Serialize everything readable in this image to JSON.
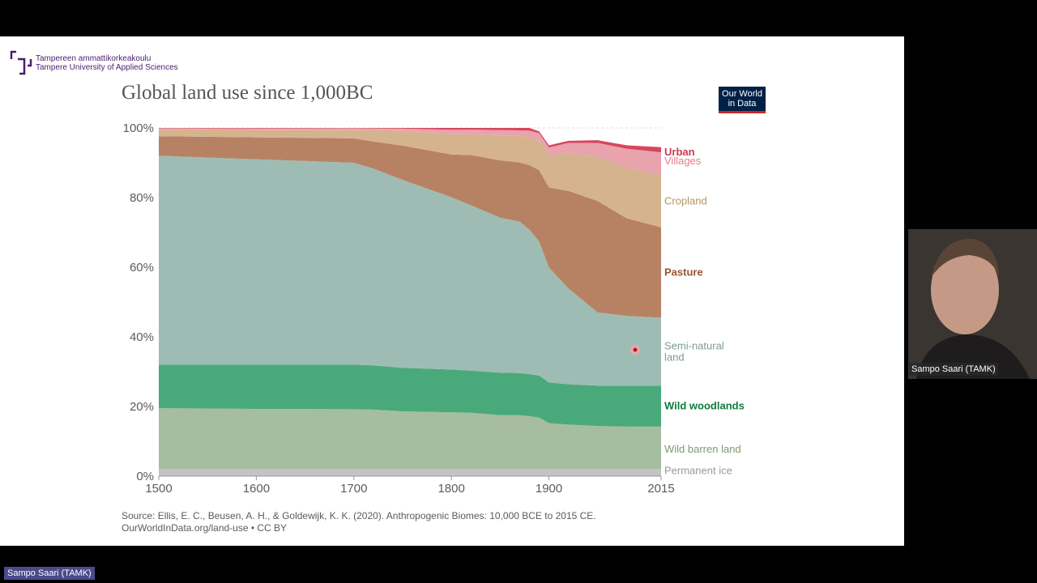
{
  "logo": {
    "line1": "Tampereen ammattikorkeakoulu",
    "line2": "Tampere University of Applied Sciences",
    "brand_color": "#4e1c6e"
  },
  "owid_badge": {
    "line1": "Our World",
    "line2": "in Data",
    "bg_color": "#002147",
    "accent_color": "#ce261e"
  },
  "source": {
    "line1": "Source: Ellis, E. C., Beusen, A. H., & Goldewijk, K. K. (2020). Anthropogenic Biomes: 10,000 BCE to 2015 CE.",
    "line2": "OurWorldInData.org/land-use • CC BY"
  },
  "presenter": {
    "name_video": "Sampo Saari (TAMK)",
    "name_bottom": "Sampo Saari (TAMK)"
  },
  "chart_data": {
    "type": "area",
    "title": "Global land use since 1,000BC",
    "stacked": true,
    "x": [
      1500,
      1600,
      1700,
      1720,
      1750,
      1800,
      1820,
      1850,
      1870,
      1880,
      1890,
      1900,
      1920,
      1950,
      1980,
      2015
    ],
    "xticks": [
      "1500",
      "1600",
      "1700",
      "1800",
      "1900",
      "2015"
    ],
    "xtick_values": [
      1500,
      1600,
      1700,
      1800,
      1900,
      2015
    ],
    "yticks": [
      "0%",
      "20%",
      "40%",
      "60%",
      "80%",
      "100%"
    ],
    "ytick_values": [
      0,
      20,
      40,
      60,
      80,
      100
    ],
    "ylim": [
      0,
      100
    ],
    "xlim": [
      1500,
      2015
    ],
    "series": [
      {
        "name": "Permanent ice",
        "color": "#c4c4c4",
        "values": [
          2,
          2,
          2,
          2,
          2,
          2,
          2,
          2,
          2,
          2,
          2,
          2,
          2,
          2,
          2,
          2
        ]
      },
      {
        "name": "Wild barren land",
        "color": "#a7bd9f",
        "values": [
          17.5,
          17.3,
          17.2,
          17.1,
          16.6,
          16.3,
          16.2,
          15.5,
          15.5,
          15.2,
          14.8,
          13.2,
          12.8,
          12.4,
          12.2,
          12.2
        ]
      },
      {
        "name": "Wild woodlands",
        "color": "#4aa97a",
        "values": [
          12.5,
          12.7,
          12.8,
          12.7,
          12.5,
          12.3,
          12.1,
          12.2,
          12.1,
          12.1,
          12.1,
          11.7,
          11.6,
          11.6,
          11.8,
          11.8
        ]
      },
      {
        "name": "Semi-natural land",
        "color": "#9fbcb4",
        "values": [
          60,
          59,
          58,
          56.5,
          54,
          49.5,
          47.5,
          44.5,
          43.5,
          41.5,
          38.5,
          33,
          27.5,
          21,
          20,
          19.5
        ]
      },
      {
        "name": "Pasture",
        "color": "#b78264",
        "values": [
          5.6,
          6.3,
          7,
          7.8,
          9.8,
          12.3,
          14.4,
          16.5,
          17,
          18.5,
          20.5,
          23,
          28,
          32,
          28,
          26
        ]
      },
      {
        "name": "Cropland",
        "color": "#d5b38f",
        "values": [
          2,
          2.2,
          2.5,
          3.3,
          4.3,
          5.8,
          6,
          7.2,
          7.6,
          8,
          8.6,
          9.3,
          10.8,
          12.7,
          14.5,
          15
        ]
      },
      {
        "name": "Villages",
        "color": "#e8a3ad",
        "values": [
          0.3,
          0.35,
          0.4,
          0.45,
          0.6,
          1.3,
          1.3,
          1.5,
          1.6,
          1.9,
          2.0,
          2.2,
          3.0,
          4.0,
          5.5,
          6.5
        ]
      },
      {
        "name": "Urban",
        "color": "#d7465e",
        "values": [
          0.1,
          0.15,
          0.1,
          0.15,
          0.2,
          0.5,
          0.5,
          0.6,
          0.7,
          0.8,
          0.5,
          0.6,
          0.6,
          0.8,
          1.0,
          1.5
        ]
      }
    ],
    "legend": [
      {
        "label": "Urban",
        "color": "#c83b55",
        "bold": true
      },
      {
        "label": "Villages",
        "color": "#e37d8b",
        "bold": false
      },
      {
        "label": "Cropland",
        "color": "#b89264",
        "bold": false
      },
      {
        "label": "Pasture",
        "color": "#9c5333",
        "bold": true
      },
      {
        "label_lines": [
          "Semi-natural",
          "land"
        ],
        "color": "#7e9b95",
        "bold": false
      },
      {
        "label": "Wild woodlands",
        "color": "#0f7a3d",
        "bold": true
      },
      {
        "label": "Wild barren land",
        "color": "#7b9b6f",
        "bold": false
      },
      {
        "label": "Permanent ice",
        "color": "#9a9a9a",
        "bold": false
      }
    ],
    "gridlines": true
  }
}
